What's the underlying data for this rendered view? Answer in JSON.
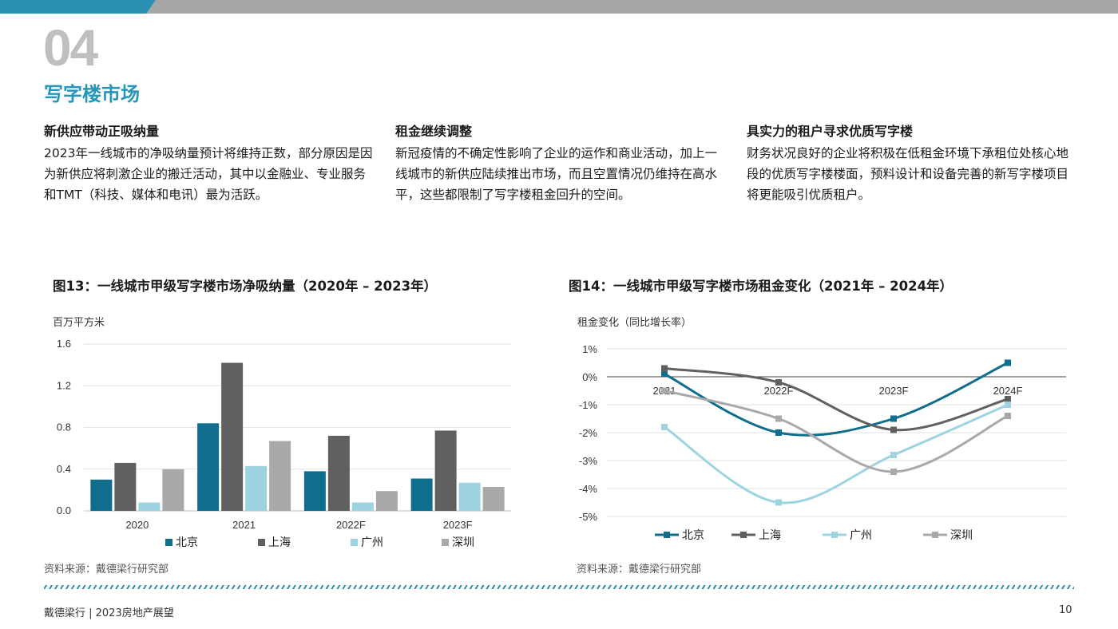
{
  "section": {
    "number": "04",
    "title": "写字楼市场"
  },
  "columns": [
    {
      "heading": "新供应带动正吸纳量",
      "body": "2023年一线城市的净吸纳量预计将维持正数，部分原因是因为新供应将刺激企业的搬迁活动，其中以金融业、专业服务和TMT（科技、媒体和电讯）最为活跃。"
    },
    {
      "heading": "租金继续调整",
      "body": "新冠疫情的不确定性影响了企业的运作和商业活动，加上一线城市的新供应陆续推出市场，而且空置情况仍维持在高水平，这些都限制了写字楼租金回升的空间。"
    },
    {
      "heading": "具实力的租户寻求优质写字楼",
      "body": "财务状况良好的企业将积极在低租金环境下承租位处核心地段的优质写字楼楼面，预料设计和设备完善的新写字楼项目将更能吸引优质租户。"
    }
  ],
  "figure13": {
    "title": "图13：一线城市甲级写字楼市场净吸纳量（2020年 – 2023年）",
    "unit": "百万平方米",
    "source": "资料来源：戴德梁行研究部"
  },
  "figure14": {
    "title": "图14：一线城市甲级写字楼市场租金变化（2021年 – 2024年）",
    "unit": "租金变化（同比增长率）",
    "source": "资料来源：戴德梁行研究部"
  },
  "colors": {
    "beijing": "#0e6e8c",
    "shanghai": "#606060",
    "guangzhou": "#9ed3e2",
    "shenzhen": "#a9a9a9",
    "teal": "#2596b9"
  },
  "chart_data": [
    {
      "type": "bar",
      "categories": [
        "2020",
        "2021",
        "2022F",
        "2023F"
      ],
      "series": [
        {
          "name": "北京",
          "values": [
            0.3,
            0.84,
            0.38,
            0.31
          ],
          "color": "#0e6e8c"
        },
        {
          "name": "上海",
          "values": [
            0.46,
            1.42,
            0.72,
            0.77
          ],
          "color": "#606060"
        },
        {
          "name": "广州",
          "values": [
            0.08,
            0.43,
            0.08,
            0.27
          ],
          "color": "#9ed3e2"
        },
        {
          "name": "深圳",
          "values": [
            0.4,
            0.67,
            0.19,
            0.23
          ],
          "color": "#a9a9a9"
        }
      ],
      "ylim": [
        0,
        1.6
      ],
      "yticks": [
        "0.0",
        "0.4",
        "0.8",
        "1.2",
        "1.6"
      ],
      "grid": true,
      "legend": "bottom"
    },
    {
      "type": "line",
      "categories": [
        "2021",
        "2022F",
        "2023F",
        "2024F"
      ],
      "series": [
        {
          "name": "北京",
          "values": [
            0.1,
            -2.0,
            -1.5,
            0.5
          ],
          "color": "#0e6e8c"
        },
        {
          "name": "上海",
          "values": [
            0.3,
            -0.2,
            -1.9,
            -0.8
          ],
          "color": "#606060"
        },
        {
          "name": "广州",
          "values": [
            -1.8,
            -4.5,
            -2.8,
            -1.0
          ],
          "color": "#9ed3e2"
        },
        {
          "name": "深圳",
          "values": [
            -0.5,
            -1.5,
            -3.4,
            -1.4
          ],
          "color": "#a9a9a9"
        }
      ],
      "ylim": [
        -5,
        1
      ],
      "yticks": [
        "1%",
        "0%",
        "-1%",
        "-2%",
        "-3%",
        "-4%",
        "-5%"
      ],
      "grid": true,
      "legend": "bottom"
    }
  ],
  "footer": {
    "left": "戴德梁行 | 2023房地产展望",
    "page": "10"
  }
}
